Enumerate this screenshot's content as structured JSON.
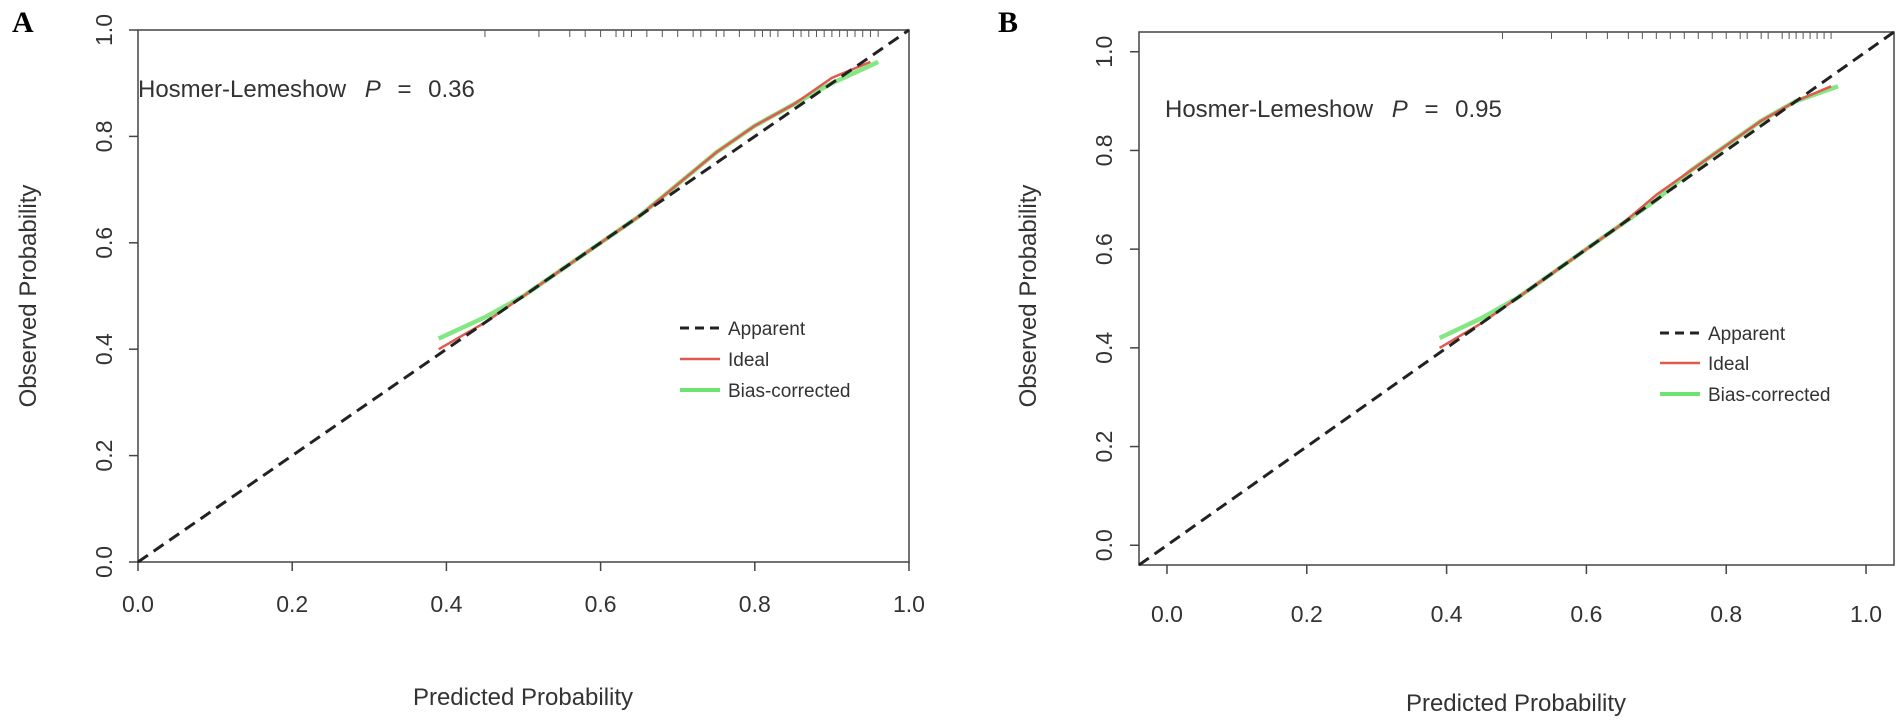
{
  "chart_data": [
    {
      "panel": "A",
      "type": "line",
      "xlabel": "Predicted Probability",
      "ylabel": "Observed Probability",
      "xlim": [
        0.0,
        1.0
      ],
      "ylim": [
        0.0,
        1.0
      ],
      "xticks": [
        "0.0",
        "0.2",
        "0.4",
        "0.6",
        "0.8",
        "1.0"
      ],
      "yticks": [
        "0.0",
        "0.2",
        "0.4",
        "0.6",
        "0.8",
        "1.0"
      ],
      "annotation": {
        "prefix": "Hosmer-Lemeshow",
        "p_symbol": "P",
        "equals": "=",
        "value": "0.36"
      },
      "legend": {
        "position": "right",
        "entries": [
          "Apparent",
          "Ideal",
          "Bias-corrected"
        ]
      },
      "series": [
        {
          "name": "Apparent",
          "color": "#222222",
          "style": "dashed",
          "x": [
            0.0,
            1.0
          ],
          "y": [
            0.0,
            1.0
          ]
        },
        {
          "name": "Ideal",
          "color": "#e05a4f",
          "style": "solid",
          "x": [
            0.39,
            0.45,
            0.5,
            0.55,
            0.6,
            0.65,
            0.7,
            0.75,
            0.8,
            0.85,
            0.9,
            0.95
          ],
          "y": [
            0.4,
            0.45,
            0.5,
            0.55,
            0.6,
            0.65,
            0.71,
            0.77,
            0.82,
            0.86,
            0.91,
            0.94
          ]
        },
        {
          "name": "Bias-corrected",
          "color": "#6fe36f",
          "style": "solid",
          "x": [
            0.39,
            0.45,
            0.5,
            0.55,
            0.6,
            0.65,
            0.7,
            0.75,
            0.8,
            0.85,
            0.9,
            0.96
          ],
          "y": [
            0.42,
            0.46,
            0.5,
            0.55,
            0.6,
            0.65,
            0.71,
            0.77,
            0.82,
            0.86,
            0.9,
            0.94
          ]
        }
      ],
      "rug_x": [
        0.45,
        0.52,
        0.56,
        0.58,
        0.6,
        0.62,
        0.63,
        0.64,
        0.66,
        0.68,
        0.7,
        0.72,
        0.73,
        0.75,
        0.76,
        0.78,
        0.8,
        0.81,
        0.82,
        0.83,
        0.85,
        0.86,
        0.87,
        0.88,
        0.89,
        0.9,
        0.91,
        0.92,
        0.93,
        0.94,
        0.95,
        0.96
      ]
    },
    {
      "panel": "B",
      "type": "line",
      "xlabel": "Predicted Probability",
      "ylabel": "Observed Probability",
      "xlim": [
        -0.04,
        1.04
      ],
      "ylim": [
        -0.04,
        1.04
      ],
      "xticks": [
        "0.0",
        "0.2",
        "0.4",
        "0.6",
        "0.8",
        "1.0"
      ],
      "yticks": [
        "0.0",
        "0.2",
        "0.4",
        "0.6",
        "0.8",
        "1.0"
      ],
      "annotation": {
        "prefix": "Hosmer-Lemeshow",
        "p_symbol": "P",
        "equals": "=",
        "value": "0.95"
      },
      "legend": {
        "position": "right",
        "entries": [
          "Apparent",
          "Ideal",
          "Bias-corrected"
        ]
      },
      "series": [
        {
          "name": "Apparent",
          "color": "#222222",
          "style": "dashed",
          "x": [
            -0.04,
            1.04
          ],
          "y": [
            -0.04,
            1.04
          ]
        },
        {
          "name": "Ideal",
          "color": "#e05a4f",
          "style": "solid",
          "x": [
            0.39,
            0.45,
            0.5,
            0.55,
            0.6,
            0.65,
            0.7,
            0.75,
            0.8,
            0.85,
            0.9,
            0.95
          ],
          "y": [
            0.4,
            0.45,
            0.5,
            0.55,
            0.6,
            0.65,
            0.71,
            0.76,
            0.81,
            0.86,
            0.9,
            0.93
          ]
        },
        {
          "name": "Bias-corrected",
          "color": "#6fe36f",
          "style": "solid",
          "x": [
            0.39,
            0.45,
            0.5,
            0.55,
            0.6,
            0.65,
            0.7,
            0.75,
            0.8,
            0.85,
            0.9,
            0.96
          ],
          "y": [
            0.42,
            0.46,
            0.5,
            0.55,
            0.6,
            0.65,
            0.7,
            0.76,
            0.81,
            0.86,
            0.9,
            0.93
          ]
        }
      ],
      "rug_x": [
        0.48,
        0.55,
        0.6,
        0.63,
        0.66,
        0.68,
        0.7,
        0.72,
        0.74,
        0.76,
        0.78,
        0.8,
        0.82,
        0.83,
        0.85,
        0.86,
        0.88,
        0.89,
        0.9,
        0.91,
        0.92,
        0.93,
        0.94,
        0.95
      ]
    }
  ],
  "panel_labels": [
    "A",
    "B"
  ]
}
